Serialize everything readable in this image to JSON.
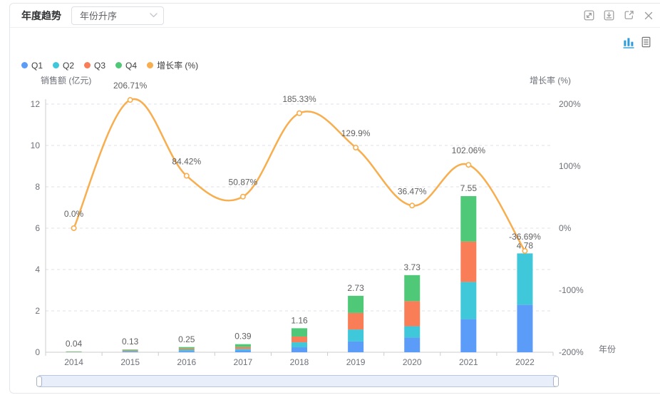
{
  "window": {
    "title": "年度趋势",
    "sort_dropdown": {
      "value": "年份升序"
    }
  },
  "legend": [
    {
      "id": "q1",
      "label": "Q1",
      "color": "#5B9CF8"
    },
    {
      "id": "q2",
      "label": "Q2",
      "color": "#3FC8D9"
    },
    {
      "id": "q3",
      "label": "Q3",
      "color": "#F97E57"
    },
    {
      "id": "q4",
      "label": "Q4",
      "color": "#4FC878"
    },
    {
      "id": "growth-rate",
      "label": "增长率 (%)",
      "color": "#F8AE4E"
    }
  ],
  "chart_data": {
    "type": "bar",
    "subtype": "stacked-bar-with-line",
    "categories": [
      "2014",
      "2015",
      "2016",
      "2017",
      "2018",
      "2019",
      "2020",
      "2021",
      "2022"
    ],
    "series": [
      {
        "name": "Q1",
        "type": "bar",
        "stack": "sales",
        "color": "#5B9CF8",
        "values": [
          0.005,
          0.03,
          0.06,
          0.1,
          0.24,
          0.52,
          0.71,
          1.6,
          2.3
        ]
      },
      {
        "name": "Q2",
        "type": "bar",
        "stack": "sales",
        "color": "#3FC8D9",
        "values": [
          0.005,
          0.02,
          0.06,
          0.06,
          0.24,
          0.58,
          0.55,
          1.8,
          2.48
        ]
      },
      {
        "name": "Q3",
        "type": "bar",
        "stack": "sales",
        "color": "#F97E57",
        "values": [
          0.01,
          0.04,
          0.06,
          0.09,
          0.28,
          0.8,
          1.21,
          1.95,
          0
        ]
      },
      {
        "name": "Q4",
        "type": "bar",
        "stack": "sales",
        "color": "#4FC878",
        "values": [
          0.02,
          0.04,
          0.07,
          0.14,
          0.4,
          0.83,
          1.26,
          2.2,
          0
        ]
      },
      {
        "name": "增长率 (%)",
        "type": "line",
        "y_axis": "right",
        "color": "#F8AE4E",
        "values": [
          0,
          206.71,
          84.42,
          50.87,
          185.33,
          129.9,
          36.47,
          102.06,
          -36.69
        ]
      }
    ],
    "bar_total_labels": [
      "0.04",
      "0.13",
      "0.25",
      "0.39",
      "1.16",
      "2.73",
      "3.73",
      "7.55",
      "4.78"
    ],
    "line_point_labels": [
      "0.0%",
      "206.71%",
      "84.42%",
      "50.87%",
      "185.33%",
      "129.9%",
      "36.47%",
      "102.06%",
      "-36.69%"
    ],
    "left_axis": {
      "name": "销售额 (亿元)",
      "tick_labels": [
        "0",
        "2",
        "4",
        "6",
        "8",
        "10",
        "12"
      ],
      "min": 0,
      "max": 12
    },
    "right_axis": {
      "name": "增长率 (%)",
      "tick_labels": [
        "-200%",
        "-100%",
        "0%",
        "100%",
        "200%"
      ],
      "min": -200,
      "max": 200
    },
    "x_axis": {
      "name": "年份"
    },
    "grid": "dashed-horizontal",
    "legend_position": "top-left"
  },
  "colors": {
    "grid_line": "#DDE2EC",
    "axis_line": "#CCCCCC",
    "tick_text": "#6E7079",
    "value_label": "#616161",
    "toolbox_active": "#2E9CDB",
    "toolbox_idle": "#777777"
  }
}
